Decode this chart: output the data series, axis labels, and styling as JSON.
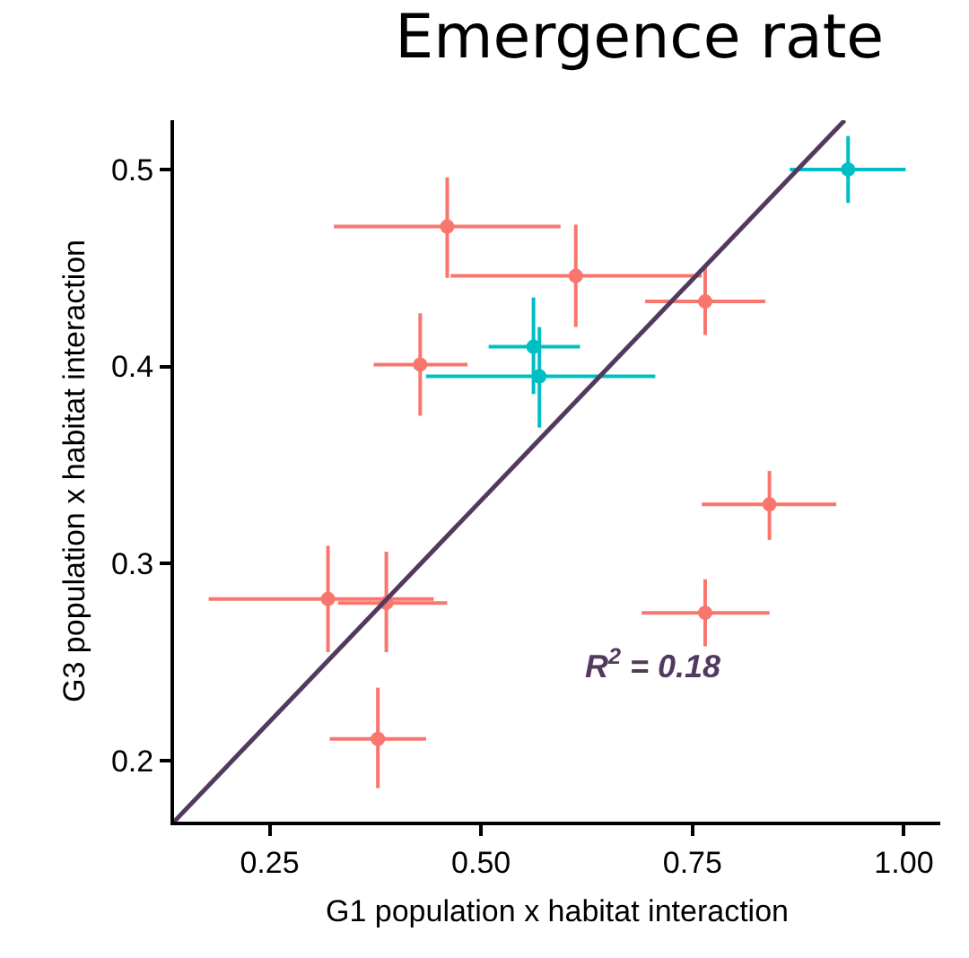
{
  "chart_data": {
    "type": "scatter",
    "title": "Emergence rate",
    "xlabel": "G1 population x habitat interaction",
    "ylabel": "G3 population x habitat interaction",
    "xlim": [
      0.137,
      1.043
    ],
    "ylim": [
      0.169,
      0.525
    ],
    "xticks": [
      0.25,
      {
        "value": 0.5,
        "label": "0.50"
      },
      0.75,
      {
        "value": 1,
        "label": "1.00"
      }
    ],
    "yticks": [
      0.2,
      0.3,
      0.4,
      0.5
    ],
    "grid": false,
    "marker": "circle",
    "annotations": [
      "R$^{2}$ = 0.18"
    ],
    "series": [
      {
        "color": "#f8766d",
        "x": [
          0.46,
          0.612,
          0.765,
          0.428,
          0.841,
          0.765,
          0.319,
          0.388,
          0.378
        ],
        "values": [
          0.471,
          0.446,
          0.433,
          0.401,
          0.33,
          0.275,
          0.282,
          0.28,
          0.211
        ],
        "errors": [
          [
            0.445,
            0.496
          ],
          [
            0.42,
            0.472
          ],
          [
            0.416,
            0.45
          ],
          [
            0.375,
            0.427
          ],
          [
            0.312,
            0.347
          ],
          [
            0.258,
            0.292
          ],
          [
            0.255,
            0.309
          ],
          [
            0.255,
            0.306
          ],
          [
            0.186,
            0.237
          ]
        ],
        "xerrors": [
          [
            0.326,
            0.594
          ],
          [
            0.464,
            0.761
          ],
          [
            0.694,
            0.836
          ],
          [
            0.373,
            0.484
          ],
          [
            0.761,
            0.92
          ],
          [
            0.69,
            0.841
          ],
          [
            0.178,
            0.444
          ],
          [
            0.331,
            0.46
          ],
          [
            0.321,
            0.435
          ]
        ]
      },
      {
        "color": "#00bfc4",
        "x": [
          0.934,
          0.562,
          0.569
        ],
        "values": [
          0.5,
          0.41,
          0.395
        ],
        "errors": [
          [
            0.483,
            0.517
          ],
          [
            0.386,
            0.435
          ],
          [
            0.369,
            0.42
          ]
        ],
        "xerrors": [
          [
            0.865,
            1.002
          ],
          [
            0.509,
            0.617
          ],
          [
            0.435,
            0.706
          ]
        ]
      },
      {
        "type": "line",
        "color": "#513a5e",
        "marker": "none",
        "x": [
          0.137,
          0.93
        ],
        "values": [
          0.169,
          0.525
        ]
      }
    ]
  }
}
